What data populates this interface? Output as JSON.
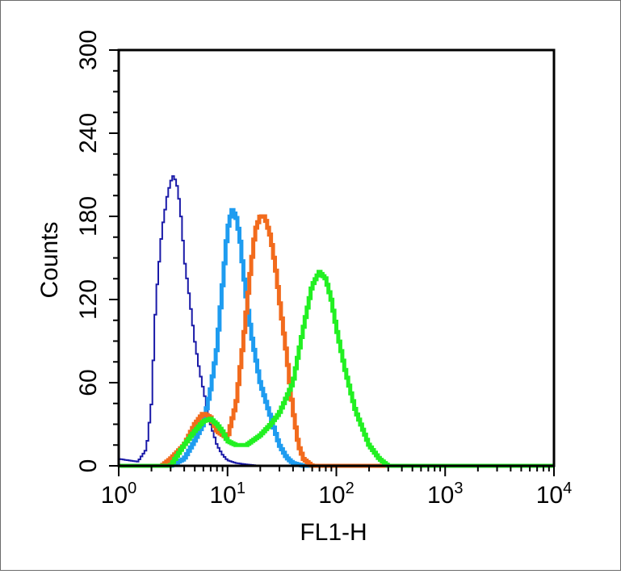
{
  "chart_data": {
    "type": "line",
    "title": "",
    "xlabel": "FL1-H",
    "ylabel": "Counts",
    "x_scale": "log",
    "xlim": [
      1,
      10000
    ],
    "ylim": [
      0,
      300
    ],
    "x_ticks": [
      {
        "value": 1,
        "base": "10",
        "exp": "0"
      },
      {
        "value": 10,
        "base": "10",
        "exp": "1"
      },
      {
        "value": 100,
        "base": "10",
        "exp": "2"
      },
      {
        "value": 1000,
        "base": "10",
        "exp": "3"
      },
      {
        "value": 10000,
        "base": "10",
        "exp": "4"
      }
    ],
    "y_ticks": [
      {
        "value": 0,
        "label": "0"
      },
      {
        "value": 60,
        "label": "60"
      },
      {
        "value": 120,
        "label": "120"
      },
      {
        "value": 180,
        "label": "180"
      },
      {
        "value": 240,
        "label": "240"
      },
      {
        "value": 300,
        "label": "300"
      }
    ],
    "grid": false,
    "legend": "none",
    "series": [
      {
        "color": "#1a1aa8",
        "style": "thin",
        "x": [
          1.0,
          1.5,
          1.8,
          2.0,
          2.2,
          2.5,
          2.8,
          3.0,
          3.2,
          3.5,
          3.8,
          4.0,
          4.5,
          5.0,
          5.5,
          6.0,
          7.0,
          8.0,
          9.0,
          10.0,
          12.0,
          15.0,
          20.0,
          30.0,
          10000.0
        ],
        "y": [
          5,
          3,
          12,
          45,
          120,
          170,
          195,
          205,
          210,
          200,
          175,
          150,
          120,
          90,
          70,
          55,
          30,
          15,
          8,
          4,
          2,
          1,
          0,
          0,
          0
        ]
      },
      {
        "color": "#1e9cf0",
        "style": "thick",
        "x": [
          1.0,
          3.0,
          4.0,
          5.0,
          6.0,
          7.0,
          8.0,
          9.0,
          10.0,
          11.0,
          12.0,
          13.0,
          14.0,
          15.0,
          17.0,
          20.0,
          25.0,
          30.0,
          35.0,
          40.0,
          50.0,
          10000.0
        ],
        "y": [
          0,
          0,
          5,
          18,
          30,
          55,
          85,
          130,
          170,
          185,
          180,
          165,
          140,
          120,
          90,
          60,
          35,
          15,
          6,
          2,
          0,
          0
        ]
      },
      {
        "color": "#f26b1d",
        "style": "thick",
        "x": [
          1.0,
          2.5,
          3.0,
          4.0,
          5.0,
          6.0,
          7.0,
          8.0,
          10.0,
          12.0,
          14.0,
          16.0,
          18.0,
          20.0,
          22.0,
          25.0,
          28.0,
          30.0,
          35.0,
          40.0,
          45.0,
          50.0,
          60.0,
          10000.0
        ],
        "y": [
          0,
          0,
          5,
          15,
          30,
          38,
          35,
          25,
          20,
          45,
          90,
          135,
          170,
          180,
          180,
          165,
          140,
          120,
          80,
          40,
          15,
          5,
          0,
          0
        ]
      },
      {
        "color": "#22f022",
        "style": "thick",
        "x": [
          1.0,
          1.5,
          3.0,
          4.0,
          5.0,
          6.0,
          7.0,
          8.0,
          9.0,
          10.0,
          12.0,
          15.0,
          20.0,
          25.0,
          30.0,
          40.0,
          50.0,
          60.0,
          70.0,
          80.0,
          90.0,
          100.0,
          120.0,
          150.0,
          200.0,
          250.0,
          300.0,
          10000.0
        ],
        "y": [
          0,
          0,
          0,
          15,
          25,
          32,
          34,
          30,
          25,
          18,
          15,
          15,
          22,
          30,
          38,
          60,
          100,
          130,
          140,
          135,
          120,
          100,
          70,
          40,
          15,
          5,
          0,
          0
        ]
      }
    ]
  }
}
